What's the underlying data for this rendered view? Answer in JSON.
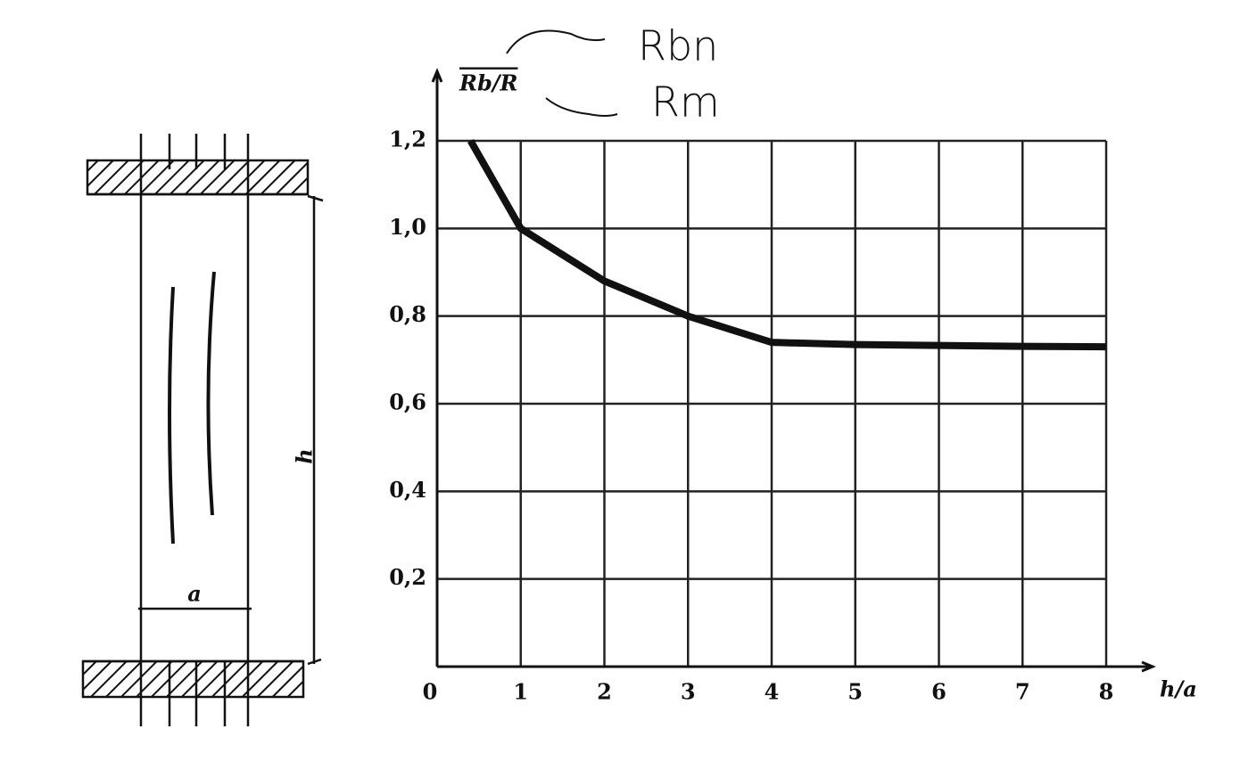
{
  "figure": {
    "width_label": "a",
    "height_label": "h"
  },
  "chart_data": {
    "type": "line",
    "y_label": "Rb/R",
    "x_label": "h/a",
    "annotations": [
      "Rbn",
      "Rm"
    ],
    "x": [
      0.4,
      1,
      2,
      3,
      4,
      5,
      6,
      7,
      8
    ],
    "values": [
      1.2,
      1.0,
      0.88,
      0.8,
      0.74,
      0.735,
      0.733,
      0.731,
      0.73
    ],
    "color": "#111111",
    "xlim": [
      0,
      8
    ],
    "ylim": [
      0,
      1.2
    ],
    "xticks": [
      0,
      1,
      2,
      3,
      4,
      5,
      6,
      7,
      8
    ],
    "yticks": [
      {
        "value": 0.2,
        "label": "0,2"
      },
      {
        "value": 0.4,
        "label": "0,4"
      },
      {
        "value": 0.6,
        "label": "0,6"
      },
      {
        "value": 0.8,
        "label": "0,8"
      },
      {
        "value": 1.0,
        "label": "1,0"
      },
      {
        "value": 1.2,
        "label": "1,2"
      }
    ],
    "grid": true
  }
}
